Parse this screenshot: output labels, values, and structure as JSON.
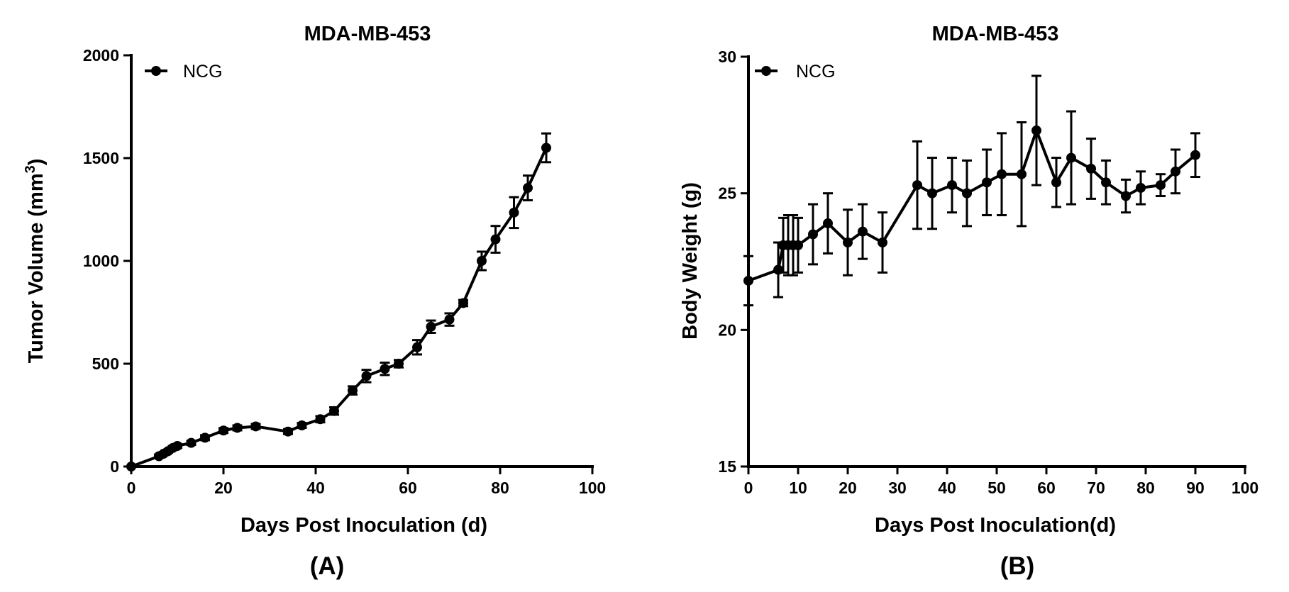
{
  "chart_data": [
    {
      "type": "line",
      "title": "MDA-MB-453",
      "xlabel": "Days Post Inoculation (d)",
      "ylabel_main": "Tumor Volume (mm",
      "ylabel_sup": "3",
      "ylabel_tail": ")",
      "panel_label": "(A)",
      "xlim": [
        0,
        100
      ],
      "ylim": [
        0,
        2000
      ],
      "xticks": [
        0,
        20,
        40,
        60,
        80,
        100
      ],
      "yticks": [
        0,
        500,
        1000,
        1500,
        2000
      ],
      "legend": "NCG",
      "series": [
        {
          "name": "NCG",
          "x": [
            0,
            6,
            7,
            8,
            9,
            10,
            13,
            16,
            20,
            23,
            27,
            34,
            37,
            41,
            44,
            48,
            51,
            55,
            58,
            62,
            65,
            69,
            72,
            76,
            79,
            83,
            86,
            90
          ],
          "y": [
            0,
            50,
            62,
            75,
            90,
            100,
            115,
            140,
            175,
            188,
            195,
            170,
            200,
            230,
            270,
            370,
            440,
            475,
            500,
            580,
            680,
            715,
            795,
            1000,
            1105,
            1235,
            1355,
            1550
          ],
          "err": [
            0,
            8,
            8,
            8,
            10,
            10,
            10,
            12,
            12,
            12,
            12,
            12,
            12,
            15,
            18,
            20,
            30,
            30,
            18,
            35,
            30,
            30,
            15,
            45,
            65,
            75,
            60,
            70
          ]
        }
      ]
    },
    {
      "type": "line",
      "title": "MDA-MB-453",
      "xlabel": "Days Post Inoculation(d)",
      "ylabel": "Body Weight (g)",
      "panel_label": "(B)",
      "xlim": [
        0,
        100
      ],
      "ylim": [
        15,
        30
      ],
      "xticks": [
        0,
        10,
        20,
        30,
        40,
        50,
        60,
        70,
        80,
        90,
        100
      ],
      "yticks": [
        15,
        20,
        25,
        30
      ],
      "legend": "NCG",
      "series": [
        {
          "name": "NCG",
          "x": [
            0,
            6,
            7,
            8,
            9,
            10,
            13,
            16,
            20,
            23,
            27,
            34,
            37,
            41,
            44,
            48,
            51,
            55,
            58,
            62,
            65,
            69,
            72,
            76,
            79,
            83,
            86,
            90
          ],
          "y": [
            21.8,
            22.2,
            23.1,
            23.1,
            23.1,
            23.1,
            23.5,
            23.9,
            23.2,
            23.6,
            23.2,
            25.3,
            25.0,
            25.3,
            25.0,
            25.4,
            25.7,
            25.7,
            27.3,
            25.4,
            26.3,
            25.9,
            25.4,
            24.9,
            25.2,
            25.3,
            25.8,
            26.4
          ],
          "err": [
            0.9,
            1.0,
            1.0,
            1.1,
            1.1,
            1.0,
            1.1,
            1.1,
            1.2,
            1.0,
            1.1,
            1.6,
            1.3,
            1.0,
            1.2,
            1.2,
            1.5,
            1.9,
            2.0,
            0.9,
            1.7,
            1.1,
            0.8,
            0.6,
            0.6,
            0.4,
            0.8,
            0.8
          ]
        }
      ]
    }
  ]
}
